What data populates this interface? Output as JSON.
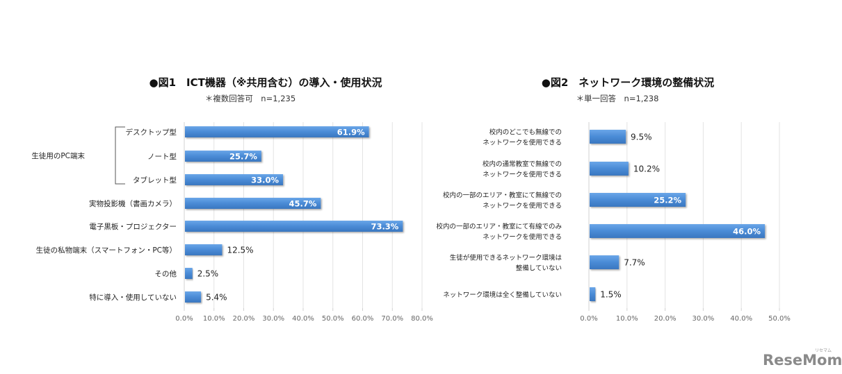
{
  "chart_data": [
    {
      "type": "bar",
      "orientation": "horizontal",
      "title": "●図1　ICT機器（※共用含む）の導入・使用状況",
      "subtitle": "＊複数回答可　n=1,235",
      "group_label": "生徒用のPC端末",
      "group_members": [
        0,
        1,
        2
      ],
      "categories": [
        "デスクトップ型",
        "ノート型",
        "タブレット型",
        "実物投影機（書画カメラ）",
        "電子黒板・プロジェクター",
        "生徒の私物端末（スマートフォン・PC等）",
        "その他",
        "特に導入・使用していない"
      ],
      "values": [
        61.9,
        25.7,
        33.0,
        45.7,
        73.3,
        12.5,
        2.5,
        5.4
      ],
      "value_labels": [
        "61.9%",
        "25.7%",
        "33.0%",
        "45.7%",
        "73.3%",
        "12.5%",
        "2.5%",
        "5.4%"
      ],
      "xlabel": "",
      "ylabel": "",
      "xlim": [
        0,
        80
      ],
      "xticks": [
        "0.0%",
        "10.0%",
        "20.0%",
        "30.0%",
        "40.0%",
        "50.0%",
        "60.0%",
        "70.0%",
        "80.0%"
      ],
      "grid": true,
      "legend": "none",
      "bar_color": "#4a8bd6"
    },
    {
      "type": "bar",
      "orientation": "horizontal",
      "title": "●図2　ネットワーク環境の整備状況",
      "subtitle": "＊単一回答　n=1,238",
      "categories": [
        [
          "校内のどこでも無線での",
          "ネットワークを使用できる"
        ],
        [
          "校内の通常教室で無線での",
          "ネットワークを使用できる"
        ],
        [
          "校内の一部のエリア・教室にて無線での",
          "ネットワークを使用できる"
        ],
        [
          "校内の一部のエリア・教室にて有線でのみ",
          "ネットワークを使用できる"
        ],
        [
          "生徒が使用できるネットワーク環境は",
          "整備していない"
        ],
        [
          "ネットワーク環境は全く整備していない"
        ]
      ],
      "values": [
        9.5,
        10.2,
        25.2,
        46.0,
        7.7,
        1.5
      ],
      "value_labels": [
        "9.5%",
        "10.2%",
        "25.2%",
        "46.0%",
        "7.7%",
        "1.5%"
      ],
      "xlabel": "",
      "ylabel": "",
      "xlim": [
        0,
        50
      ],
      "xticks": [
        "0.0%",
        "10.0%",
        "20.0%",
        "30.0%",
        "40.0%",
        "50.0%"
      ],
      "grid": true,
      "legend": "none",
      "bar_color": "#4a8bd6"
    }
  ],
  "watermark": {
    "text": "ReseMom",
    "small_text": "リセマム"
  }
}
